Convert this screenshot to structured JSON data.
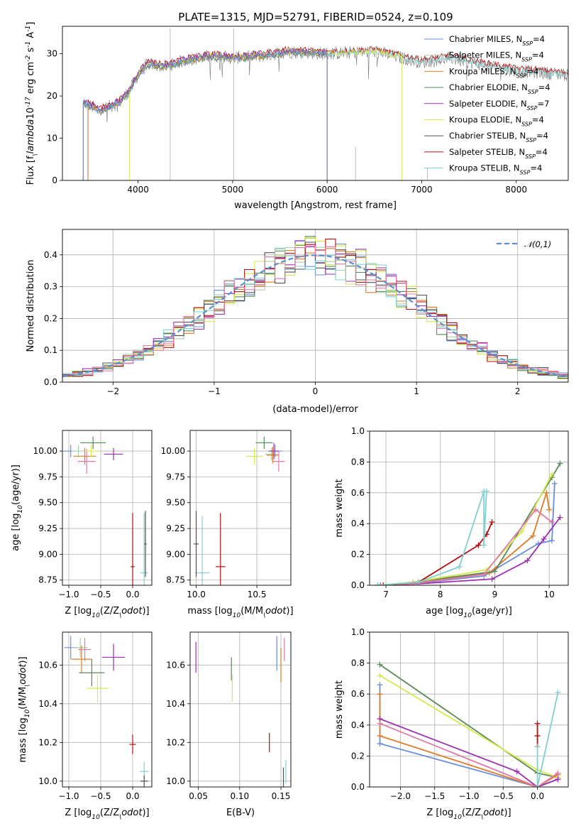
{
  "figure": {
    "title": "PLATE=1315, MJD=52791, FIBERID=0524, z=0.109"
  },
  "colors": {
    "chabrier_miles": "#6a8fd8",
    "salpeter_miles": "#a8d0a8",
    "kroupa_miles": "#e07b25",
    "chabrier_elodie": "#5a8a5a",
    "salpeter_elodie": "#9b30b0",
    "kroupa_elodie": "#d4ea4a",
    "chabrier_stelib": "#505050",
    "salpeter_stelib": "#b01010",
    "kroupa_stelib": "#80d0d0",
    "pink": "#e07aa8",
    "normal": "#5b8fd0"
  },
  "chart_data": [
    {
      "id": "spectrum",
      "type": "line",
      "title": "PLATE=1315, MJD=52791, FIBERID=0524, z=0.109",
      "xlabel": "wavelength [Angstrom, rest frame]",
      "ylabel": "Flux [f$_\\lambda$10$^{-17}$ erg cm$^{-2}$ s$^{-1}$ A$^{-1}$]",
      "xlim": [
        3200,
        8550
      ],
      "ylim": [
        0,
        36.5
      ],
      "xticks": [
        4000,
        5000,
        6000,
        7000,
        8000
      ],
      "yticks": [
        0,
        10,
        20,
        30
      ],
      "grid": false,
      "legend_position": "top-right",
      "legend": [
        {
          "label": "Chabrier MILES, N$_{SSP}$=4",
          "color": "#6a8fd8"
        },
        {
          "label": "Salpeter MILES, N$_{SSP}$=4",
          "color": "#a8d0a8"
        },
        {
          "label": "Kroupa MILES, N$_{SSP}$=4",
          "color": "#e07b25"
        },
        {
          "label": "Chabrier ELODIE, N$_{SSP}$=4",
          "color": "#5a8a5a"
        },
        {
          "label": "Salpeter ELODIE, N$_{SSP}$=7",
          "color": "#9b30b0"
        },
        {
          "label": "Kroupa ELODIE, N$_{SSP}$=4",
          "color": "#d4ea4a"
        },
        {
          "label": "Chabrier STELIB, N$_{SSP}$=4",
          "color": "#505050"
        },
        {
          "label": "Salpeter STELIB, N$_{SSP}$=4",
          "color": "#b01010"
        },
        {
          "label": "Kroupa STELIB, N$_{SSP}$=4",
          "color": "#80d0d0"
        }
      ],
      "continuum": {
        "x": [
          3420,
          3600,
          3800,
          3900,
          4000,
          4100,
          4300,
          4500,
          4800,
          5000,
          5300,
          5600,
          6000,
          6500,
          7000,
          7300,
          7500,
          8000,
          8550
        ],
        "y": [
          18.5,
          16.5,
          18.5,
          21,
          25,
          27.5,
          27,
          28.5,
          29.5,
          29,
          29.5,
          30.5,
          30,
          30.5,
          28,
          29,
          28,
          26,
          25
        ]
      },
      "data_series_color": "#7a7a7a",
      "model_series": [
        {
          "color": "#b01010",
          "offset": 0.6,
          "start": 3470,
          "end": 8550
        },
        {
          "color": "#80d0d0",
          "offset": 0,
          "start": 3420,
          "end": 8550
        },
        {
          "color": "#e07b25",
          "offset": -0.2,
          "start": 3470,
          "end": 6000
        },
        {
          "color": "#d4ea4a",
          "offset": 0.1,
          "start": 3910,
          "end": 6790
        },
        {
          "color": "#5a8a5a",
          "offset": -0.3,
          "start": 3420,
          "end": 6000
        },
        {
          "color": "#9b30b0",
          "offset": 0.3,
          "start": 3420,
          "end": 6000
        },
        {
          "color": "#6a8fd8",
          "offset": -0.1,
          "start": 3420,
          "end": 6000
        }
      ]
    },
    {
      "id": "residuals",
      "type": "bar",
      "xlabel": "(data-model)/error",
      "ylabel": "Normed distribution",
      "xlim": [
        -2.5,
        2.5
      ],
      "ylim": [
        0,
        0.48
      ],
      "xticks": [
        -2,
        -1,
        0,
        1,
        2
      ],
      "yticks": [
        0.0,
        0.1,
        0.2,
        0.3,
        0.4
      ],
      "grid": true,
      "legend_position": "top-right",
      "legend": [
        {
          "label": "$\\mathcal{N}(0,1)$",
          "color": "#5b8fd0",
          "style": "dashed"
        }
      ],
      "bin_width": 0.1,
      "series_colors": [
        "#6a8fd8",
        "#a8d0a8",
        "#e07b25",
        "#5a8a5a",
        "#9b30b0",
        "#d4ea4a",
        "#505050",
        "#b01010",
        "#80d0d0",
        "#e07aa8"
      ]
    },
    {
      "id": "age-vs-z",
      "type": "scatter",
      "xlabel": "Z [log$_{10}$(Z/Z$_\\odot$)]",
      "ylabel": "age  [log$_{10}$(age/yr)]",
      "xlim": [
        -1.1,
        0.3
      ],
      "ylim": [
        8.7,
        10.2
      ],
      "xticks": [
        -1.0,
        -0.5,
        0.0
      ],
      "yticks": [
        8.75,
        9.0,
        9.25,
        9.5,
        9.75,
        10.0
      ],
      "grid": true,
      "points": [
        {
          "x": -0.97,
          "y": 10.0,
          "xerr": 0.12,
          "yerr": 0.06,
          "color": "#6a8fd8"
        },
        {
          "x": -0.85,
          "y": 10.0,
          "xerr": 0.1,
          "yerr": 0.06,
          "color": "#a8d0a8"
        },
        {
          "x": -0.75,
          "y": 9.95,
          "xerr": 0.18,
          "yerr": 0.08,
          "color": "#e07b25"
        },
        {
          "x": -0.62,
          "y": 10.08,
          "xerr": 0.2,
          "yerr": 0.06,
          "color": "#5a8a5a"
        },
        {
          "x": -0.3,
          "y": 9.97,
          "xerr": 0.15,
          "yerr": 0.06,
          "color": "#9b30b0"
        },
        {
          "x": -0.72,
          "y": 9.9,
          "xerr": 0.14,
          "yerr": 0.12,
          "color": "#e07aa8"
        },
        {
          "x": -0.65,
          "y": 10.0,
          "xerr": 0.1,
          "yerr": 0.06,
          "color": "#d4ea4a"
        },
        {
          "x": 0.0,
          "y": 8.88,
          "xerr": 0.03,
          "yerr": 0.52,
          "color": "#b01010"
        },
        {
          "x": 0.18,
          "y": 8.82,
          "xerr": 0.06,
          "yerr": 0.58,
          "color": "#80d0d0"
        },
        {
          "x": 0.2,
          "y": 9.1,
          "xerr": 0.02,
          "yerr": 0.32,
          "color": "#505050"
        }
      ]
    },
    {
      "id": "age-vs-mass",
      "type": "scatter",
      "xlabel": "mass [log$_{10}$(M/M$_\\odot$)]",
      "ylabel": "",
      "xlim": [
        9.95,
        10.78
      ],
      "ylim": [
        8.7,
        10.2
      ],
      "xticks": [
        10.0,
        10.5
      ],
      "yticks": [
        8.75,
        9.0,
        9.25,
        9.5,
        9.75,
        10.0
      ],
      "grid": true,
      "points": [
        {
          "x": 10.65,
          "y": 10.0,
          "xerr": 0.06,
          "yerr": 0.06,
          "color": "#6a8fd8"
        },
        {
          "x": 10.62,
          "y": 9.97,
          "xerr": 0.05,
          "yerr": 0.06,
          "color": "#a8d0a8"
        },
        {
          "x": 10.63,
          "y": 9.96,
          "xerr": 0.05,
          "yerr": 0.08,
          "color": "#e07b25"
        },
        {
          "x": 10.56,
          "y": 10.08,
          "xerr": 0.07,
          "yerr": 0.06,
          "color": "#5a8a5a"
        },
        {
          "x": 10.64,
          "y": 10.0,
          "xerr": 0.04,
          "yerr": 0.08,
          "color": "#9b30b0"
        },
        {
          "x": 10.68,
          "y": 9.9,
          "xerr": 0.05,
          "yerr": 0.1,
          "color": "#e07aa8"
        },
        {
          "x": 10.48,
          "y": 9.95,
          "xerr": 0.07,
          "yerr": 0.08,
          "color": "#d4ea4a"
        },
        {
          "x": 10.2,
          "y": 8.88,
          "xerr": 0.04,
          "yerr": 0.52,
          "color": "#b01010"
        },
        {
          "x": 10.05,
          "y": 8.82,
          "xerr": 0.06,
          "yerr": 0.55,
          "color": "#80d0d0"
        },
        {
          "x": 10.0,
          "y": 9.1,
          "xerr": 0.02,
          "yerr": 0.32,
          "color": "#505050"
        }
      ]
    },
    {
      "id": "weight-vs-age",
      "type": "line",
      "xlabel": "age  [log$_{10}$(age/yr)]",
      "ylabel": "mass weight",
      "xlim": [
        6.7,
        10.35
      ],
      "ylim": [
        0.0,
        1.0
      ],
      "xticks": [
        7,
        8,
        9,
        10
      ],
      "yticks": [
        0.0,
        0.2,
        0.4,
        0.6,
        0.8,
        1.0
      ],
      "grid": true,
      "series": [
        {
          "color": "#6a8fd8",
          "x": [
            6.85,
            7.5,
            8.8,
            9.8,
            10.05,
            10.1
          ],
          "y": [
            0.0,
            0.01,
            0.06,
            0.27,
            0.29,
            0.66
          ]
        },
        {
          "color": "#e07b25",
          "x": [
            6.85,
            7.5,
            8.9,
            9.7,
            9.95,
            10.0
          ],
          "y": [
            0.0,
            0.01,
            0.08,
            0.32,
            0.6,
            0.49
          ]
        },
        {
          "color": "#5a8a5a",
          "x": [
            6.9,
            7.5,
            9.0,
            10.05,
            10.2
          ],
          "y": [
            0.0,
            0.02,
            0.09,
            0.7,
            0.79
          ]
        },
        {
          "color": "#9b30b0",
          "x": [
            6.9,
            7.6,
            8.95,
            9.6,
            9.9,
            10.2
          ],
          "y": [
            0.0,
            0.01,
            0.04,
            0.16,
            0.3,
            0.44
          ]
        },
        {
          "color": "#d4ea4a",
          "x": [
            6.85,
            7.5,
            8.85,
            9.5,
            10.05
          ],
          "y": [
            0.0,
            0.02,
            0.1,
            0.35,
            0.72
          ]
        },
        {
          "color": "#e07aa8",
          "x": [
            6.9,
            7.5,
            8.8,
            9.75,
            10.05
          ],
          "y": [
            0.0,
            0.01,
            0.07,
            0.49,
            0.41
          ]
        },
        {
          "color": "#b01010",
          "x": [
            6.95,
            7.6,
            8.7,
            8.85,
            8.95
          ],
          "y": [
            0.0,
            0.02,
            0.26,
            0.33,
            0.41
          ]
        },
        {
          "color": "#80d0d0",
          "x": [
            6.85,
            7.6,
            8.35,
            8.8,
            8.8,
            8.85
          ],
          "y": [
            0.0,
            0.02,
            0.12,
            0.61,
            0.26,
            0.61
          ]
        }
      ]
    },
    {
      "id": "mass-vs-z",
      "type": "scatter",
      "xlabel": "Z [log$_{10}$(Z/Z$_\\odot$)]",
      "ylabel": "mass [log$_{10}$(M/M$_\\odot$)]",
      "xlim": [
        -1.1,
        0.3
      ],
      "ylim": [
        9.97,
        10.77
      ],
      "xticks": [
        -1.0,
        -0.5,
        0.0
      ],
      "yticks": [
        10.0,
        10.2,
        10.4,
        10.6
      ],
      "grid": true,
      "points": [
        {
          "x": -0.97,
          "y": 10.69,
          "xerr": 0.1,
          "yerr": 0.06,
          "color": "#6a8fd8"
        },
        {
          "x": -0.82,
          "y": 10.69,
          "xerr": 0.12,
          "yerr": 0.05,
          "color": "#a8d0a8"
        },
        {
          "x": -0.8,
          "y": 10.63,
          "xerr": 0.16,
          "yerr": 0.07,
          "color": "#e07b25"
        },
        {
          "x": -0.64,
          "y": 10.56,
          "xerr": 0.2,
          "yerr": 0.07,
          "color": "#5a8a5a"
        },
        {
          "x": -0.3,
          "y": 10.64,
          "xerr": 0.18,
          "yerr": 0.07,
          "color": "#9b30b0"
        },
        {
          "x": -0.75,
          "y": 10.68,
          "xerr": 0.1,
          "yerr": 0.06,
          "color": "#e07aa8"
        },
        {
          "x": -0.55,
          "y": 10.48,
          "xerr": 0.17,
          "yerr": 0.07,
          "color": "#d4ea4a"
        },
        {
          "x": 0.0,
          "y": 10.19,
          "xerr": 0.05,
          "yerr": 0.05,
          "color": "#b01010"
        },
        {
          "x": 0.18,
          "y": 10.05,
          "xerr": 0.07,
          "yerr": 0.05,
          "color": "#80d0d0"
        },
        {
          "x": 0.18,
          "y": 10.0,
          "xerr": 0.06,
          "yerr": 0.03,
          "color": "#505050"
        }
      ]
    },
    {
      "id": "mass-vs-ebv",
      "type": "scatter",
      "xlabel": "E(B-V)",
      "ylabel": "",
      "xlim": [
        0.04,
        0.162
      ],
      "ylim": [
        9.97,
        10.77
      ],
      "xticks": [
        0.05,
        0.1,
        0.15
      ],
      "yticks": [
        10.0,
        10.2,
        10.4,
        10.6
      ],
      "grid": true,
      "points": [
        {
          "x": 0.145,
          "y": 10.66,
          "xerr": 0,
          "yerr": 0.09,
          "color": "#6a8fd8"
        },
        {
          "x": 0.154,
          "y": 10.68,
          "xerr": 0,
          "yerr": 0.06,
          "color": "#e07aa8"
        },
        {
          "x": 0.15,
          "y": 10.6,
          "xerr": 0,
          "yerr": 0.09,
          "color": "#e07b25"
        },
        {
          "x": 0.09,
          "y": 10.58,
          "xerr": 0,
          "yerr": 0.06,
          "color": "#5a8a5a"
        },
        {
          "x": 0.047,
          "y": 10.64,
          "xerr": 0,
          "yerr": 0.08,
          "color": "#9b30b0"
        },
        {
          "x": 0.091,
          "y": 10.48,
          "xerr": 0,
          "yerr": 0.07,
          "color": "#d4ea4a"
        },
        {
          "x": 0.136,
          "y": 10.2,
          "xerr": 0,
          "yerr": 0.05,
          "color": "#b01010"
        },
        {
          "x": 0.156,
          "y": 10.05,
          "xerr": 0,
          "yerr": 0.06,
          "color": "#80d0d0"
        },
        {
          "x": 0.153,
          "y": 10.02,
          "xerr": 0,
          "yerr": 0.05,
          "color": "#505050"
        }
      ]
    },
    {
      "id": "weight-vs-z",
      "type": "line",
      "xlabel": "Z [log$_{10}$(Z/Z$_\\odot$)]",
      "ylabel": "mass weight",
      "xlim": [
        -2.45,
        0.45
      ],
      "ylim": [
        0.0,
        1.0
      ],
      "xticks": [
        -2.0,
        -1.5,
        -1.0,
        -0.5,
        0.0
      ],
      "yticks": [
        0.0,
        0.2,
        0.4,
        0.6,
        0.8,
        1.0
      ],
      "grid": true,
      "series": [
        {
          "color": "#5a8a5a",
          "x": [
            -2.3,
            0.0,
            0.3
          ],
          "y": [
            0.79,
            0.09,
            0.06
          ]
        },
        {
          "color": "#d4ea4a",
          "x": [
            -2.3,
            0.0,
            0.3
          ],
          "y": [
            0.72,
            0.11,
            0.06
          ]
        },
        {
          "color": "#6a8fd8",
          "x": [
            -2.3,
            -2.3,
            0.0,
            0.3
          ],
          "y": [
            0.66,
            0.28,
            0.0,
            0.05
          ]
        },
        {
          "color": "#e07b25",
          "x": [
            -2.3,
            -2.3,
            0.0,
            0.3
          ],
          "y": [
            0.6,
            0.33,
            0.0,
            0.08
          ]
        },
        {
          "color": "#9b30b0",
          "x": [
            -2.3,
            -0.3,
            0.0,
            0.3
          ],
          "y": [
            0.44,
            0.1,
            0.0,
            0.05
          ]
        },
        {
          "color": "#e07aa8",
          "x": [
            -2.3,
            0.0,
            0.3
          ],
          "y": [
            0.41,
            0.0,
            0.09
          ]
        },
        {
          "color": "#b01010",
          "x": [
            0.0,
            0.0,
            0.0
          ],
          "y": [
            0.41,
            0.33,
            0.26
          ]
        },
        {
          "color": "#80d0d0",
          "x": [
            0.0,
            0.0,
            0.3
          ],
          "y": [
            0.26,
            0.0,
            0.61
          ]
        }
      ]
    }
  ]
}
